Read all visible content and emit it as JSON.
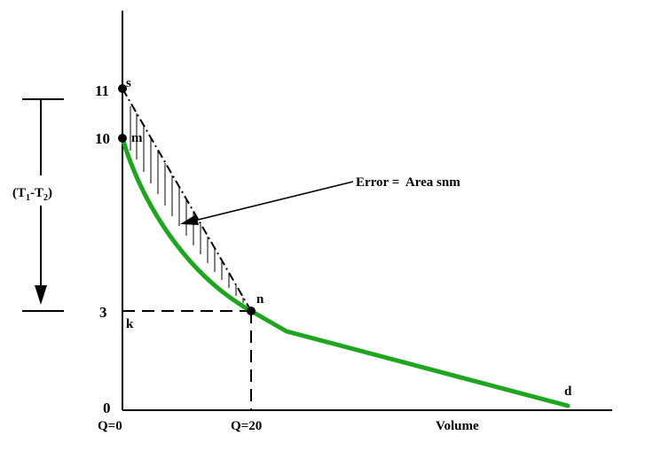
{
  "colors": {
    "curve": "#1fa51f",
    "ink": "#000000",
    "background": "#ffffff"
  },
  "y_ticks": [
    {
      "label": "11",
      "value": 11
    },
    {
      "label": "10",
      "value": 10
    },
    {
      "label": "3",
      "value": 3
    },
    {
      "label": "0",
      "value": 0
    }
  ],
  "x_ticks": [
    {
      "label": "Q=0",
      "value": 0
    },
    {
      "label": "Q=20",
      "value": 20
    }
  ],
  "xlabel": "Volume",
  "points": {
    "s": "s",
    "m": "m",
    "n": "n",
    "k": "k",
    "d": "d"
  },
  "difference_label": {
    "main": "(T",
    "sub1": "1",
    "dash": "-T",
    "sub2": "2",
    "close": ")"
  },
  "annotation": "Error =  Area snm"
}
